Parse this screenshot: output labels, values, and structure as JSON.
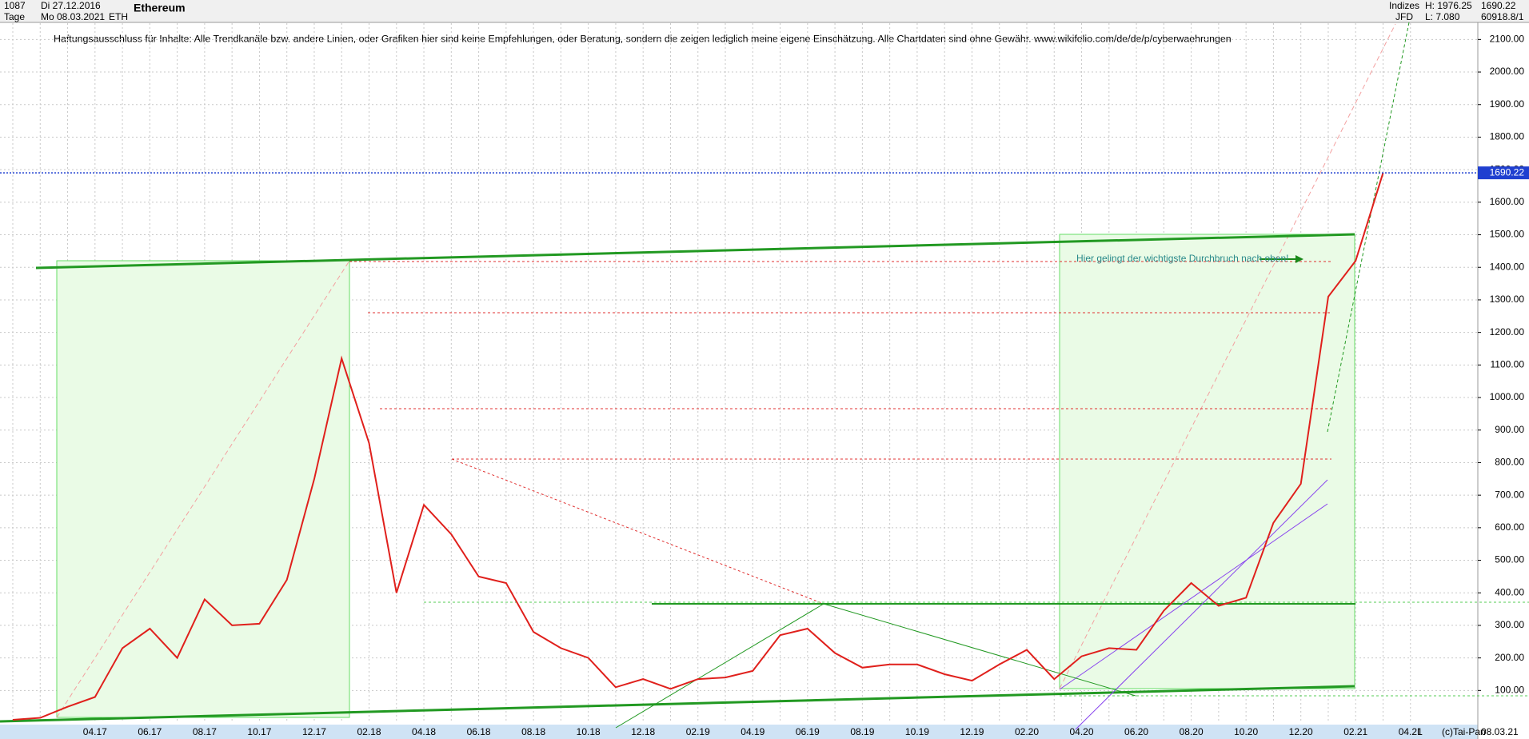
{
  "header": {
    "count": "1087",
    "period": "Tage",
    "from": "Di 27.12.2016",
    "to": "Mo 08.03.2021",
    "symbol": "ETH",
    "name": "Ethereum",
    "market": "Indizes",
    "source": "JFD",
    "high": "H: 1976.25",
    "low": "L: 7.080",
    "last": "1690.22",
    "volume": "60918.8/1"
  },
  "footer": {
    "copyright": "(c)Tai-Pan",
    "date": "08.03.21",
    "scale": "L"
  },
  "chart_data": {
    "type": "line",
    "disclaimer": "Haftungsausschluss für Inhalte: Alle Trendkanäle bzw. andere Linien, oder Grafiken hier sind keine Empfehlungen, oder Beratung, sondern die zeigen lediglich meine eigene Einschätzung. Alle Chartdaten sind ohne Gewähr.  www.wikifolio.com/de/de/p/cyberwaehrungen",
    "annotation": "Hier gelingt der wichtigste Durchbruch nach oben!",
    "categories": [
      null,
      null,
      null,
      "04.17",
      null,
      "06.17",
      null,
      "08.17",
      null,
      "10.17",
      null,
      "12.17",
      null,
      "02.18",
      null,
      "04.18",
      null,
      "06.18",
      null,
      "08.18",
      null,
      "10.18",
      null,
      "12.18",
      null,
      "02.19",
      null,
      "04.19",
      null,
      "06.19",
      null,
      "08.19",
      null,
      "10.19",
      null,
      "12.19",
      null,
      "02.20",
      null,
      "04.20",
      null,
      "06.20",
      null,
      "08.20",
      null,
      "10.20",
      null,
      "12.20",
      null,
      "02.21",
      null,
      "04.21"
    ],
    "series": [
      {
        "name": "ETH",
        "color": "#e0201c",
        "values": [
          10,
          16,
          50,
          80,
          230,
          290,
          200,
          380,
          300,
          305,
          440,
          750,
          1120,
          860,
          400,
          670,
          580,
          450,
          430,
          280,
          230,
          200,
          110,
          135,
          105,
          135,
          140,
          160,
          270,
          290,
          215,
          170,
          180,
          180,
          150,
          130,
          180,
          225,
          135,
          205,
          230,
          225,
          345,
          430,
          360,
          385,
          615,
          735,
          1310,
          1420,
          1690,
          null
        ]
      }
    ],
    "price_line": 1690.22,
    "price_label": "1690.22",
    "price_color": "#1f3fd0",
    "ylim": [
      5,
      2150
    ],
    "yticks": [
      {
        "value": 100,
        "label": "100.00"
      },
      {
        "value": 200,
        "label": "200.00"
      },
      {
        "value": 300,
        "label": "300.00"
      },
      {
        "value": 400,
        "label": "400.00"
      },
      {
        "value": 500,
        "label": "500.00"
      },
      {
        "value": 600,
        "label": "600.00"
      },
      {
        "value": 700,
        "label": "700.00"
      },
      {
        "value": 800,
        "label": "800.00"
      },
      {
        "value": 900,
        "label": "900.00"
      },
      {
        "value": 1000,
        "label": "1000.00"
      },
      {
        "value": 1100,
        "label": "1100.00"
      },
      {
        "value": 1200,
        "label": "1200.00"
      },
      {
        "value": 1300,
        "label": "1300.00"
      },
      {
        "value": 1400,
        "label": "1400.00"
      },
      {
        "value": 1500,
        "label": "1500.00"
      },
      {
        "value": 1600,
        "label": "1600.00"
      },
      {
        "value": 1700,
        "label": "1700.00"
      },
      {
        "value": 1800,
        "label": "1800.00"
      },
      {
        "value": 1900,
        "label": "1900.00"
      },
      {
        "value": 2000,
        "label": "2000.00"
      },
      {
        "value": 2100,
        "label": "2100.00"
      }
    ],
    "grid": true
  }
}
